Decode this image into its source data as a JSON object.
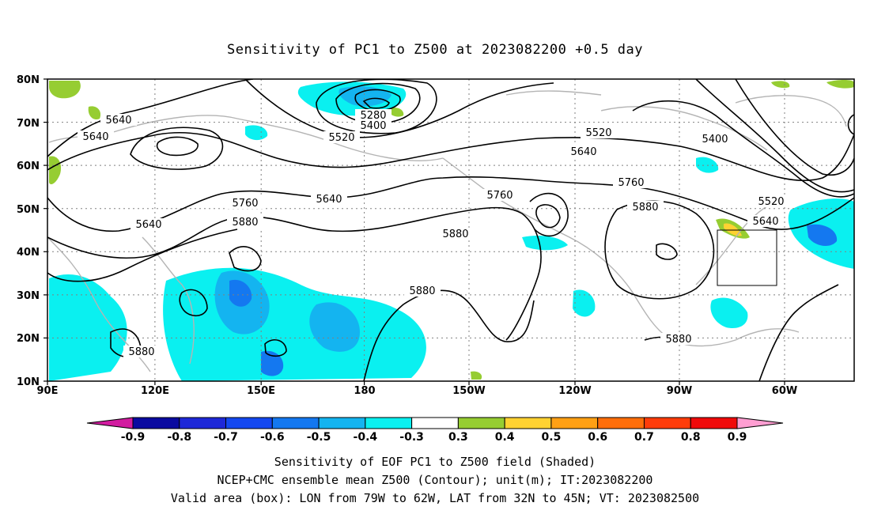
{
  "title": "Sensitivity of PC1 to Z500 at 2023082200 +0.5 day",
  "map": {
    "lat_ticks": [
      "80N",
      "70N",
      "60N",
      "50N",
      "40N",
      "30N",
      "20N",
      "10N"
    ],
    "lon_ticks": [
      "90E",
      "120E",
      "150E",
      "180",
      "150W",
      "120W",
      "90W",
      "60W"
    ],
    "grid": true,
    "box": {
      "lon_from": "79W",
      "lon_to": "62W",
      "lat_from": "32N",
      "lat_to": "45N"
    }
  },
  "contours": {
    "unit": "m",
    "labels": [
      "5640",
      "5640",
      "5280",
      "5400",
      "5520",
      "5520",
      "5400",
      "5640",
      "5640",
      "5760",
      "5640",
      "5760",
      "5880",
      "5880",
      "5760",
      "5880",
      "5520",
      "5640",
      "5880",
      "5880",
      "5880"
    ]
  },
  "colorbar": {
    "ticks": [
      "-0.9",
      "-0.8",
      "-0.7",
      "-0.6",
      "-0.5",
      "-0.4",
      "-0.3",
      "0.3",
      "0.4",
      "0.5",
      "0.6",
      "0.7",
      "0.8",
      "0.9"
    ],
    "colors": [
      "#0a0aa0",
      "#1e28d8",
      "#1448f0",
      "#1478f0",
      "#14b4f0",
      "#0af0f0",
      "#ffffff",
      "#96cd32",
      "#ffd232",
      "#ffa014",
      "#ff6e0a",
      "#ff3c0a",
      "#f00a0a"
    ],
    "low_end_color": "#d21ca0",
    "high_end_color": "#ff9ed2"
  },
  "captions": [
    "Sensitivity of EOF PC1 to Z500 field (Shaded)",
    "NCEP+CMC ensemble mean Z500 (Contour); unit(m); IT:2023082200",
    "Valid area (box): LON from 79W to 62W, LAT from 32N to 45N; VT: 2023082500"
  ]
}
